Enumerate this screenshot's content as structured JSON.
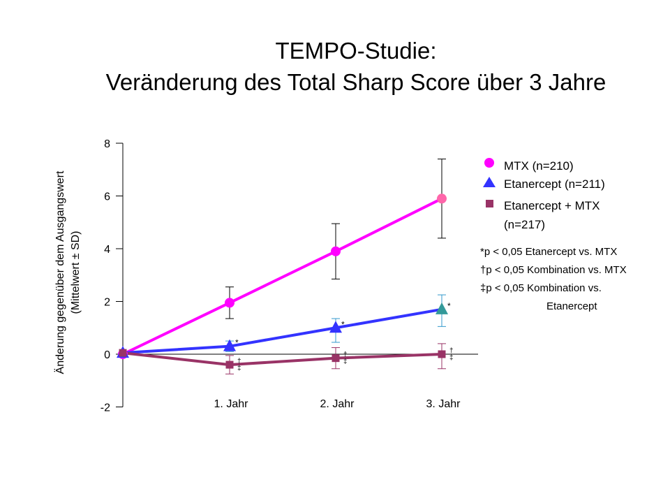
{
  "title_line1": "TEMPO-Studie:",
  "title_line2": "Veränderung des Total Sharp Score über 3 Jahre",
  "chart_data": {
    "type": "line",
    "x": [
      "",
      "1. Jahr",
      "2. Jahr",
      "3. Jahr"
    ],
    "ylabel_line1": "Änderung gegenüber dem Ausgangswert",
    "ylabel_line2": "(Mittelwert ± SD)",
    "ylim": [
      -2,
      8
    ],
    "yticks": [
      "8",
      "6",
      "4",
      "2",
      "0",
      "-2"
    ],
    "series": [
      {
        "name": "MTX (n=210)",
        "marker": "circle",
        "color": "#ff00ff",
        "values": [
          0.0,
          1.95,
          3.9,
          5.9
        ],
        "sd_low": [
          null,
          1.35,
          2.85,
          4.4
        ],
        "sd_high": [
          null,
          2.55,
          4.95,
          7.4
        ],
        "marks": [
          "",
          "",
          "",
          ""
        ]
      },
      {
        "name": "Etanercept (n=211)",
        "marker": "triangle",
        "color": "#3333ff",
        "values": [
          0.05,
          0.3,
          1.0,
          1.7
        ],
        "sd_low": [
          null,
          0.1,
          0.45,
          1.05
        ],
        "sd_high": [
          null,
          0.5,
          1.35,
          2.25
        ],
        "marks": [
          "",
          "*",
          "*",
          "*"
        ]
      },
      {
        "name": "Etanercept + MTX",
        "name_line2": "(n=217)",
        "marker": "square",
        "color": "#993366",
        "values": [
          0.05,
          -0.4,
          -0.15,
          0.0
        ],
        "sd_low": [
          null,
          -0.75,
          -0.55,
          -0.55
        ],
        "sd_high": [
          null,
          -0.05,
          0.25,
          0.4
        ],
        "marks": [
          "",
          "†‡",
          "†‡",
          "†‡"
        ]
      }
    ],
    "notes": [
      "*p < 0,05 Etanercept vs. MTX",
      "†p < 0,05 Kombination vs. MTX",
      "‡p < 0,05 Kombination vs.",
      "Etanercept"
    ],
    "legend_position": "right"
  }
}
